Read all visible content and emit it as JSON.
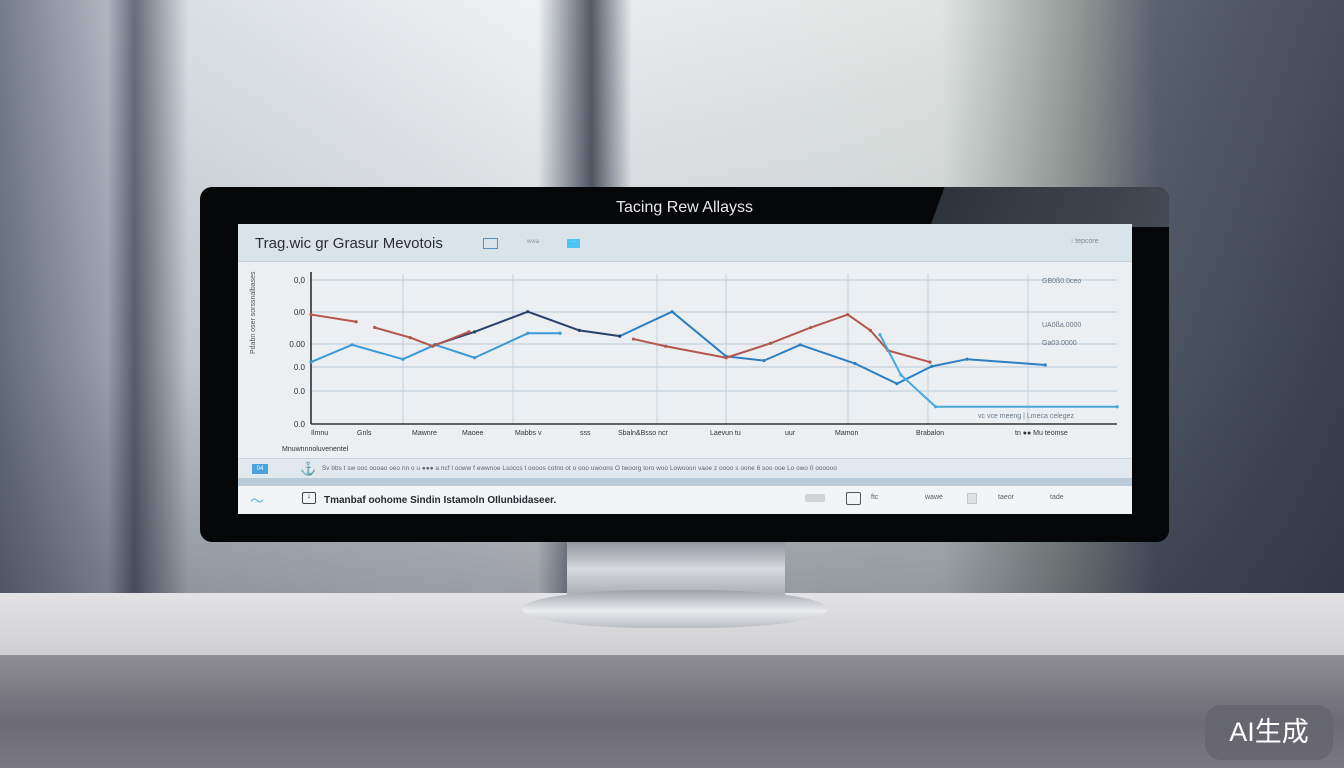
{
  "monitor_title": "Tacing Rew Allayss",
  "header": {
    "title": "Trag.wic gr Grasur Mevotois",
    "small_label": "wwa",
    "button_label": "···",
    "right_label": "⁝ tepcore"
  },
  "chart_data": {
    "type": "line",
    "ylabel": "Pdabn oser sorssnalbases",
    "y_tick_labels": [
      "0.0",
      "0.0",
      "0.0",
      "0.00",
      "0/0",
      "0,0"
    ],
    "x_tick_labels": [
      "Ilmnu",
      "Gnls",
      "Mawnre",
      "Maoee",
      "Mabbs v",
      "sss",
      "Sbaln&Bsso ncr",
      "Laevun tu",
      "uur",
      "Mamon",
      "Brabalon",
      "tn ●● Mu teomse"
    ],
    "xlabel": "Mnuwnnnoluvenentel",
    "right_labels": [
      "GB0ß0.0ceo",
      "UA0ßa.0000",
      "Ga03.0000",
      "vc vce meeng | Lmeca celegez"
    ],
    "grid": true,
    "ylim": [
      0,
      100
    ],
    "xlim": [
      0,
      100
    ],
    "series": [
      {
        "color": "#3a9ad6",
        "x": [
          0,
          5.1,
          11.4,
          15.4,
          20.3,
          26.9,
          30.9
        ],
        "y": [
          43,
          55,
          45,
          55,
          46,
          63,
          63
        ]
      },
      {
        "color": "#2e7fc2",
        "x": [
          38.3,
          44.8,
          51.5,
          56.2,
          60.7,
          67.5,
          72.7,
          77.0,
          81.4,
          91.1
        ],
        "y": [
          61,
          78,
          47,
          44,
          55,
          42,
          28,
          40,
          45,
          41
        ]
      },
      {
        "color": "#27406b",
        "x": [
          15.4,
          20.3,
          26.9,
          33.3,
          38.3
        ],
        "y": [
          55,
          64,
          78,
          65,
          61
        ]
      },
      {
        "color": "#b5554f",
        "x": [
          0,
          5.6
        ],
        "y": [
          76,
          71
        ]
      },
      {
        "color": "#b5554f",
        "x": [
          7.9,
          12.3,
          15.1,
          19.6
        ],
        "y": [
          67,
          60,
          54,
          64
        ]
      },
      {
        "color": "#b5554f",
        "x": [
          40.0,
          44.0,
          51.5,
          57.0,
          62.0,
          66.6,
          69.4,
          71.6,
          76.8
        ],
        "y": [
          59,
          54,
          46,
          56,
          67,
          76,
          65,
          51,
          43
        ]
      },
      {
        "color": "#47a8dc",
        "x": [
          70.6,
          73.2,
          77.5,
          100
        ],
        "y": [
          62,
          34,
          12,
          12
        ]
      }
    ]
  },
  "row1": {
    "badge": "04",
    "text": "Sv bbs t sw ooc oooao oeo  nn o u ●●● a ncf l ooww f  ewwnoe Lsoccs t  oooos cotno ot  o ooo uwoons  O twoorg  toro woo  Lowooon  vaoe z oooo s oone 6 soo ooe Lo owo 0 oooooo"
  },
  "row2": {
    "text": "Tmanbaf oohome  Sindin Istamoln  OIlunbidaseer.",
    "labels": [
      "ftc",
      "wawe",
      "taeor",
      "tade"
    ]
  },
  "watermark": "AI生成"
}
